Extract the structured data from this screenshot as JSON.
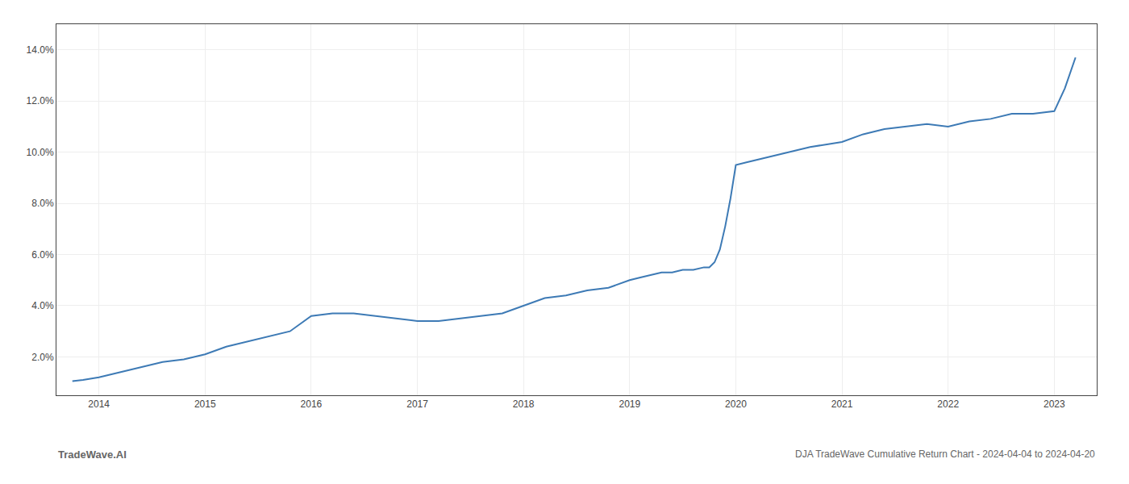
{
  "chart_data": {
    "type": "line",
    "title": "DJA TradeWave Cumulative Return Chart - 2024-04-04 to 2024-04-20",
    "annotations": [
      "TradeWave.AI"
    ],
    "x": [
      2013.75,
      2013.85,
      2014.0,
      2014.2,
      2014.4,
      2014.6,
      2014.8,
      2015.0,
      2015.2,
      2015.4,
      2015.6,
      2015.8,
      2016.0,
      2016.2,
      2016.4,
      2016.6,
      2016.8,
      2017.0,
      2017.2,
      2017.4,
      2017.6,
      2017.8,
      2018.0,
      2018.2,
      2018.4,
      2018.6,
      2018.8,
      2019.0,
      2019.1,
      2019.2,
      2019.3,
      2019.4,
      2019.5,
      2019.6,
      2019.7,
      2019.75,
      2019.8,
      2019.85,
      2019.9,
      2019.95,
      2020.0,
      2020.1,
      2020.2,
      2020.3,
      2020.5,
      2020.7,
      2021.0,
      2021.2,
      2021.4,
      2021.6,
      2021.8,
      2022.0,
      2022.2,
      2022.4,
      2022.6,
      2022.8,
      2023.0,
      2023.1,
      2023.2
    ],
    "values": [
      0.0105,
      0.011,
      0.012,
      0.014,
      0.016,
      0.018,
      0.019,
      0.021,
      0.024,
      0.026,
      0.028,
      0.03,
      0.036,
      0.037,
      0.037,
      0.036,
      0.035,
      0.034,
      0.034,
      0.035,
      0.036,
      0.037,
      0.04,
      0.043,
      0.044,
      0.046,
      0.047,
      0.05,
      0.051,
      0.052,
      0.053,
      0.053,
      0.054,
      0.054,
      0.055,
      0.055,
      0.057,
      0.062,
      0.071,
      0.082,
      0.095,
      0.096,
      0.097,
      0.098,
      0.1,
      0.102,
      0.104,
      0.107,
      0.109,
      0.11,
      0.111,
      0.11,
      0.112,
      0.113,
      0.115,
      0.115,
      0.116,
      0.125,
      0.137
    ],
    "color": "#3d7ab5",
    "xlim": [
      2013.6,
      2023.4
    ],
    "xticks": [
      2014,
      2015,
      2016,
      2017,
      2018,
      2019,
      2020,
      2021,
      2022,
      2023
    ],
    "ylim": [
      0.005,
      0.15
    ],
    "yticks": [
      {
        "value": 0.02,
        "label": "2.0%"
      },
      {
        "value": 0.04,
        "label": "4.0%"
      },
      {
        "value": 0.06,
        "label": "6.0%"
      },
      {
        "value": 0.08,
        "label": "8.0%"
      },
      {
        "value": 0.1,
        "label": "10.0%"
      },
      {
        "value": 0.12,
        "label": "12.0%"
      },
      {
        "value": 0.14,
        "label": "14.0%"
      }
    ],
    "grid": true
  }
}
